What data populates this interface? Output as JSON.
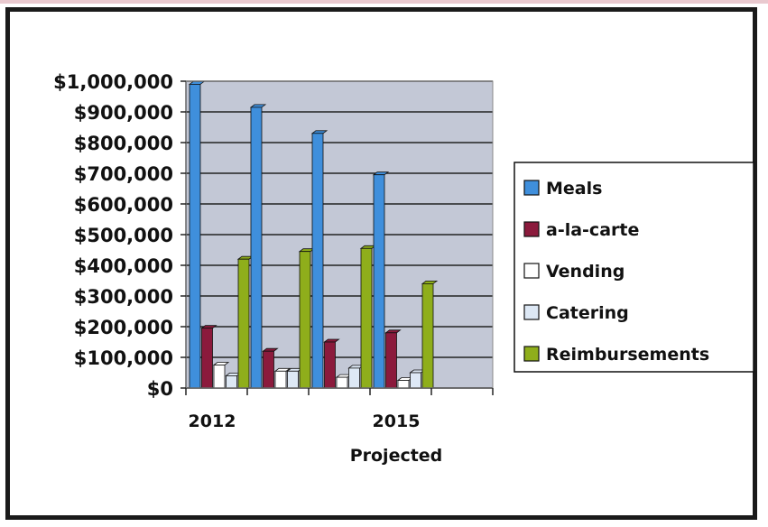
{
  "chart_data": {
    "type": "bar",
    "categories": [
      "2012",
      "",
      "",
      "2015"
    ],
    "xlabel": "Projected",
    "ylabel": "",
    "ylim": [
      0,
      1000000
    ],
    "y_ticks": [
      "$0",
      "$100,000",
      "$200,000",
      "$300,000",
      "$400,000",
      "$500,000",
      "$600,000",
      "$700,000",
      "$800,000",
      "$900,000",
      "$1,000,000"
    ],
    "y_tick_values": [
      0,
      100000,
      200000,
      300000,
      400000,
      500000,
      600000,
      700000,
      800000,
      900000,
      1000000
    ],
    "grid": true,
    "legend_position": "right",
    "series": [
      {
        "name": "Meals",
        "color": "#3f8fdc",
        "values": [
          990000,
          915000,
          830000,
          695000
        ]
      },
      {
        "name": "a-la-carte",
        "color": "#8b1a3c",
        "values": [
          195000,
          120000,
          150000,
          180000
        ]
      },
      {
        "name": "Vending",
        "color": "#ffffff",
        "values": [
          75000,
          55000,
          35000,
          25000
        ]
      },
      {
        "name": "Catering",
        "color": "#dde8f5",
        "values": [
          40000,
          55000,
          65000,
          50000
        ]
      },
      {
        "name": "Reimbursements",
        "color": "#8fae1b",
        "values": [
          420000,
          445000,
          455000,
          340000
        ]
      }
    ],
    "plot_area_color": "#c3c8d6"
  }
}
